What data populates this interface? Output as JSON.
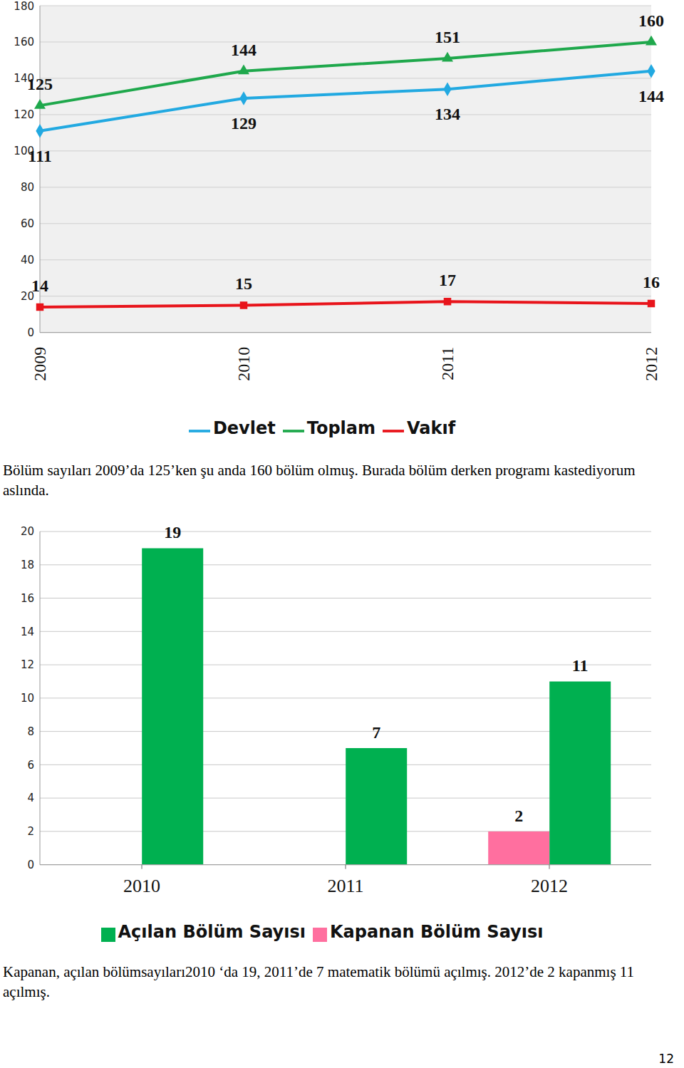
{
  "chart_data": [
    {
      "type": "line",
      "categories": [
        "2009",
        "2010",
        "2011",
        "2012"
      ],
      "series": [
        {
          "name": "Devlet",
          "color": "#22a9e1",
          "marker": "diamond",
          "values": [
            111,
            129,
            134,
            144
          ]
        },
        {
          "name": "Vakıf",
          "color": "#e8141b",
          "marker": "square",
          "values": [
            14,
            15,
            17,
            16
          ]
        },
        {
          "name": "Toplam",
          "color": "#1fa84c",
          "marker": "triangle",
          "values": [
            125,
            144,
            151,
            160
          ]
        }
      ],
      "ylim": [
        0,
        180
      ],
      "yticks": [
        0,
        20,
        40,
        60,
        80,
        100,
        120,
        140,
        160,
        180
      ],
      "grid": true,
      "data_labels": true,
      "legend": "bottom"
    },
    {
      "type": "bar",
      "categories": [
        "2010",
        "2011",
        "2012"
      ],
      "series": [
        {
          "name": "Kapanan Bölüm Sayısı",
          "color": "#ff6f9f",
          "values": [
            null,
            null,
            2
          ]
        },
        {
          "name": "Açılan Bölüm Sayısı",
          "color": "#00b050",
          "values": [
            19,
            7,
            11
          ]
        }
      ],
      "ylim": [
        0,
        20
      ],
      "yticks": [
        0,
        2,
        4,
        6,
        8,
        10,
        12,
        14,
        16,
        18,
        20
      ],
      "grid": true,
      "data_labels": true,
      "legend": "bottom"
    }
  ],
  "text": [
    "Bölüm sayıları 2009’da 125’ken şu anda 160 bölüm olmuş. Burada bölüm derken programı kastediyorum aslında.",
    "Kapanan, açılan bölümsayıları2010 ‘da 19, 2011’de 7 matematik bölümü açılmış. 2012’de 2 kapanmış 11 açılmış."
  ],
  "page_number": "12"
}
